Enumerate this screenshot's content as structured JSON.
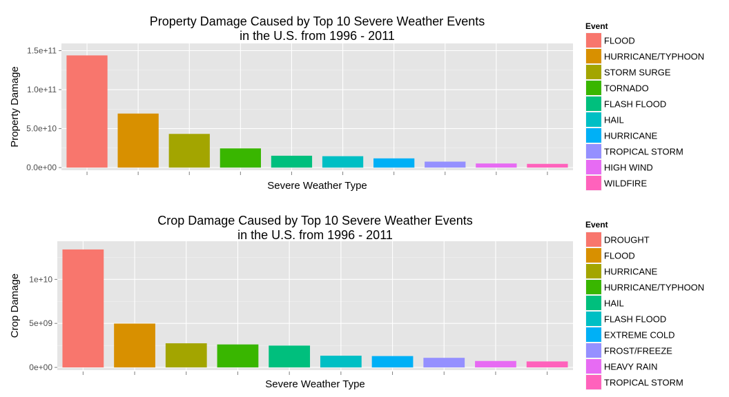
{
  "chart_data": [
    {
      "type": "bar",
      "title": "Property Damage Caused by Top 10 Severe Weather Events",
      "subtitle": "in the U.S. from 1996 - 2011",
      "xlabel": "Severe Weather Type",
      "ylabel": "Property Damage",
      "ylim": [
        0,
        150000000000
      ],
      "yticks": [
        0,
        50000000000,
        100000000000,
        150000000000
      ],
      "ytick_labels": [
        "0.0e+00",
        "5.0e+10",
        "1.0e+11",
        "1.5e+11"
      ],
      "grid": true,
      "legend_position": "right",
      "legend_title": "Event",
      "categories": [
        "FLOOD",
        "HURRICANE/TYPHOON",
        "STORM SURGE",
        "TORNADO",
        "FLASH FLOOD",
        "HAIL",
        "HURRICANE",
        "TROPICAL STORM",
        "HIGH WIND",
        "WILDFIRE"
      ],
      "values": [
        143900000000,
        69300000000,
        43200000000,
        24600000000,
        15200000000,
        14600000000,
        11800000000,
        7640000000,
        5250000000,
        4760000000
      ],
      "colors": [
        "#F8766D",
        "#D89000",
        "#A3A500",
        "#39B600",
        "#00BF7D",
        "#00BFC4",
        "#00B0F6",
        "#9590FF",
        "#E76BF3",
        "#FF62BC"
      ]
    },
    {
      "type": "bar",
      "title": "Crop Damage Caused by Top 10 Severe Weather Events",
      "subtitle": "in the U.S. from 1996 - 2011",
      "xlabel": "Severe Weather Type",
      "ylabel": "Crop Damage",
      "ylim": [
        0,
        13500000000
      ],
      "yticks": [
        0,
        5000000000,
        10000000000
      ],
      "ytick_labels": [
        "0e+00",
        "5e+09",
        "1e+10"
      ],
      "grid": true,
      "legend_position": "right",
      "legend_title": "Event",
      "categories": [
        "DROUGHT",
        "FLOOD",
        "HURRICANE",
        "HURRICANE/TYPHOON",
        "HAIL",
        "FLASH FLOOD",
        "EXTREME COLD",
        "FROST/FREEZE",
        "HEAVY RAIN",
        "TROPICAL STORM"
      ],
      "values": [
        13400000000,
        4980000000,
        2740000000,
        2610000000,
        2480000000,
        1330000000,
        1290000000,
        1090000000,
        730000000,
        680000000
      ],
      "colors": [
        "#F8766D",
        "#D89000",
        "#A3A500",
        "#39B600",
        "#00BF7D",
        "#00BFC4",
        "#00B0F6",
        "#9590FF",
        "#E76BF3",
        "#FF62BC"
      ]
    }
  ]
}
